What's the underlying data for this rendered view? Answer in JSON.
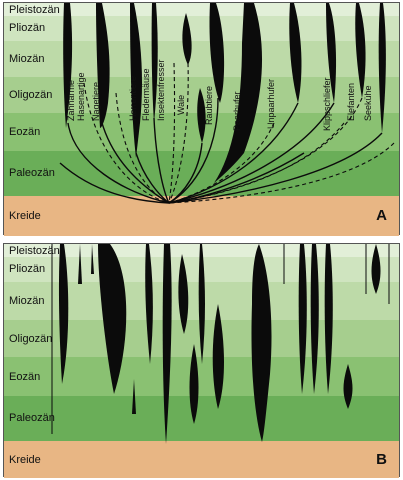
{
  "epochs": [
    "Pleistozän",
    "Pliozän",
    "Miozän",
    "Oligozän",
    "Eozän",
    "Paleozän",
    "Kreide"
  ],
  "panels": [
    {
      "letter": "A",
      "taxa": [
        "Zahnarme",
        "Hasenartige",
        "Nagetiere",
        "Herrentiere",
        "Fledermäuse",
        "Insektenfresser",
        "Wale",
        "Raubtiere",
        "Paarhufer",
        "Unpaarhufer",
        "Klippschliefer",
        "Elefanten",
        "Seekühe"
      ]
    },
    {
      "letter": "B",
      "taxa": []
    }
  ],
  "colors": {
    "pleistocene": "#e2efd8",
    "pliocene": "#cfe4bf",
    "miocene": "#bddaa8",
    "oligocene": "#a6ce8e",
    "eocene": "#8ac172",
    "paleocene": "#6aae58",
    "cretaceous": "#e8b684",
    "lineage": "#0b0b0b"
  }
}
